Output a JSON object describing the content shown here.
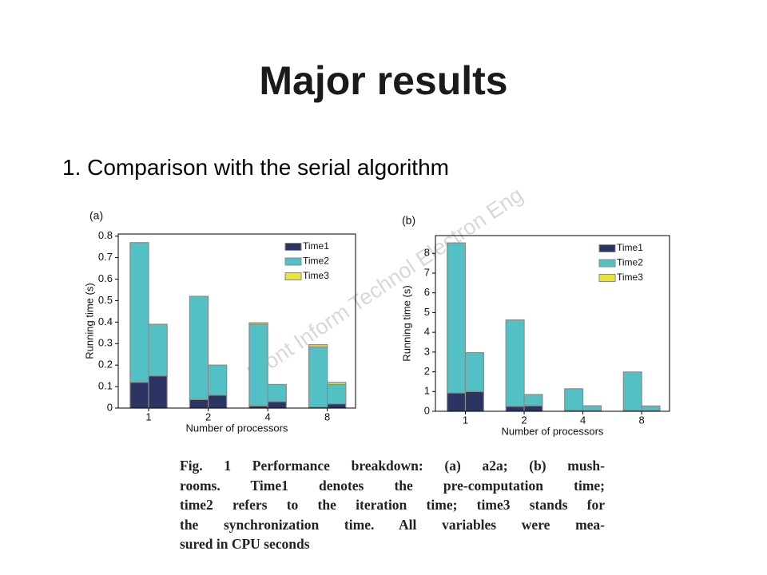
{
  "title": "Major results",
  "subtitle": "1. Comparison with the serial algorithm",
  "watermark": "Front Inform Technol Electron Eng",
  "caption_lines": [
    "Fig. 1   Performance breakdown: (a) a2a; (b) mush-",
    "rooms.    Time1 denotes the pre-computation time;",
    "time2 refers to the iteration time; time3 stands for",
    "the synchronization time.   All variables were mea-",
    "sured in CPU seconds"
  ],
  "chart_data": [
    {
      "type": "bar",
      "stacked": true,
      "label": "(a)",
      "ylabel": "Running time (s)",
      "xlabel": "Number of processors",
      "categories": [
        "1",
        null,
        "2",
        null,
        "4",
        null,
        "8",
        null
      ],
      "series": [
        {
          "name": "Time1",
          "color": "#2b3463",
          "values": [
            0.12,
            0.15,
            0.04,
            0.06,
            0.01,
            0.03,
            0.005,
            0.02
          ]
        },
        {
          "name": "Time2",
          "color": "#52c0c5",
          "values": [
            0.65,
            0.24,
            0.48,
            0.14,
            0.38,
            0.08,
            0.28,
            0.09
          ]
        },
        {
          "name": "Time3",
          "color": "#e8e23e",
          "values": [
            0,
            0,
            0,
            0,
            0.007,
            0,
            0.01,
            0.01
          ]
        }
      ],
      "ylim": [
        0,
        0.81
      ],
      "yticks": [
        0,
        0.1,
        0.2,
        0.3,
        0.4,
        0.5,
        0.6,
        0.7,
        0.8
      ],
      "legend": "upper right"
    },
    {
      "type": "bar",
      "stacked": true,
      "label": "(b)",
      "ylabel": "Running time (s)",
      "xlabel": "Number of processors",
      "categories": [
        "1",
        null,
        "2",
        null,
        "4",
        null,
        "8",
        null
      ],
      "series": [
        {
          "name": "Time1",
          "color": "#2b3463",
          "values": [
            0.93,
            1.0,
            0.25,
            0.28,
            0.05,
            0.03,
            0.03,
            0.03
          ]
        },
        {
          "name": "Time2",
          "color": "#52c0c5",
          "values": [
            7.6,
            1.97,
            4.38,
            0.57,
            1.09,
            0.25,
            1.96,
            0.24
          ]
        },
        {
          "name": "Time3",
          "color": "#e8e23e",
          "values": [
            0,
            0,
            0,
            0,
            0,
            0,
            0,
            0
          ]
        }
      ],
      "ylim": [
        0,
        8.9
      ],
      "yticks": [
        0,
        1,
        2,
        3,
        4,
        5,
        6,
        7,
        8
      ],
      "legend": "upper right"
    }
  ]
}
